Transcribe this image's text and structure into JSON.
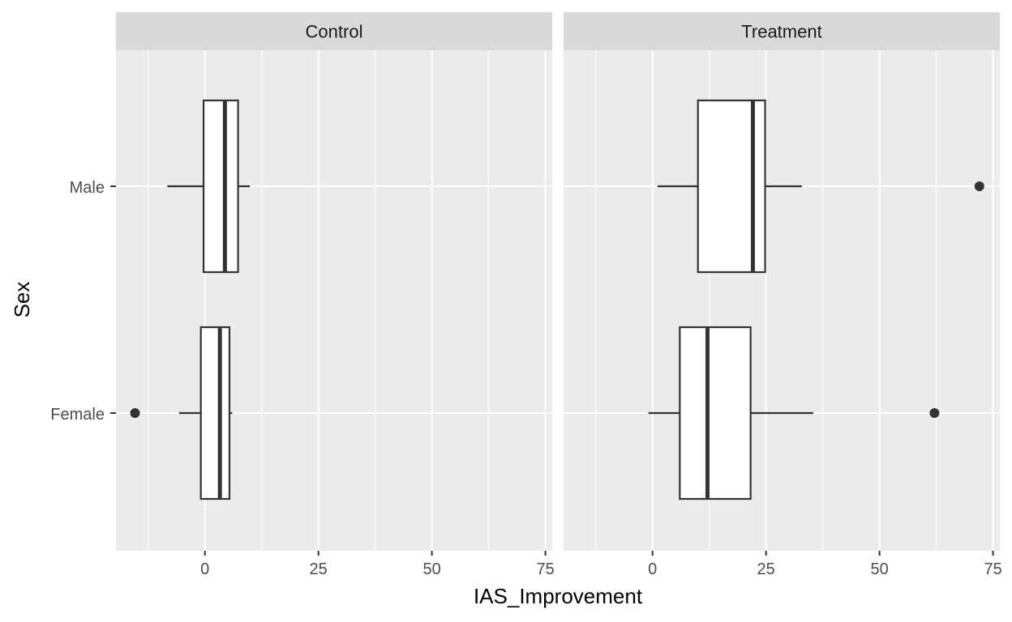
{
  "chart_data": {
    "type": "boxplot",
    "orientation": "horizontal",
    "xlabel": "IAS_Improvement",
    "ylabel": "Sex",
    "categories": [
      "Female",
      "Male"
    ],
    "x_ticks": [
      0,
      25,
      50,
      75
    ],
    "x_tick_labels": [
      "0",
      "25",
      "50",
      "75"
    ],
    "xlim": [
      -19.6,
      76.5
    ],
    "grid": true,
    "panel_background": "#ebebeb",
    "strip_background": "#d9d9d9",
    "grid_color": "#ffffff",
    "box_fill": "#ffffff",
    "line_color": "#333333",
    "facets": [
      {
        "name": "Control",
        "boxes": [
          {
            "category": "Male",
            "whisker_low": -8.3,
            "q1": -0.3,
            "median": 4.4,
            "q3": 7.3,
            "whisker_high": 9.9,
            "outliers": []
          },
          {
            "category": "Female",
            "whisker_low": -5.7,
            "q1": -0.9,
            "median": 3.3,
            "q3": 5.4,
            "whisker_high": 6.0,
            "outliers": [
              -15.4
            ]
          }
        ]
      },
      {
        "name": "Treatment",
        "boxes": [
          {
            "category": "Male",
            "whisker_low": 1.1,
            "q1": 10.0,
            "median": 22.1,
            "q3": 24.8,
            "whisker_high": 32.9,
            "outliers": [
              72.0
            ]
          },
          {
            "category": "Female",
            "whisker_low": -0.9,
            "q1": 6.0,
            "median": 12.1,
            "q3": 21.6,
            "whisker_high": 35.4,
            "outliers": [
              62.1
            ]
          }
        ]
      }
    ]
  }
}
